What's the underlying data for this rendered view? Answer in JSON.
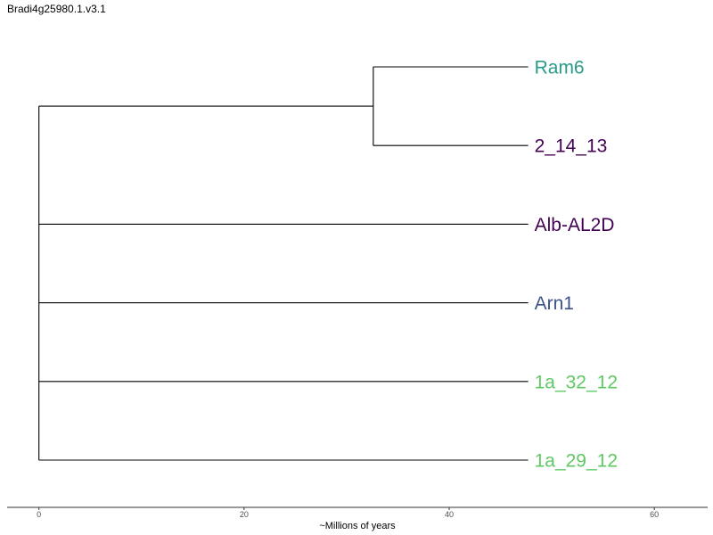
{
  "title": "Bradi4g25980.1.v3.1",
  "axis": {
    "label": "~Millions of years",
    "ticks": [
      0,
      20,
      40,
      60
    ],
    "range": [
      -3.1,
      65.2
    ]
  },
  "tree": {
    "root_age": 0,
    "tips": [
      {
        "name": "Ram6",
        "color": "#2a9a8a"
      },
      {
        "name": "2_14_13",
        "color": "#440154"
      },
      {
        "name": "Alb-AL2D",
        "color": "#440154"
      },
      {
        "name": "Arn1",
        "color": "#3b528b"
      },
      {
        "name": "1a_32_12",
        "color": "#5ec962"
      },
      {
        "name": "1a_29_12",
        "color": "#5ec962"
      }
    ],
    "tip_x": 47.7,
    "internal_clade": {
      "children": [
        "Ram6",
        "2_14_13"
      ],
      "x": 32.6
    },
    "line_color": "#000000"
  }
}
